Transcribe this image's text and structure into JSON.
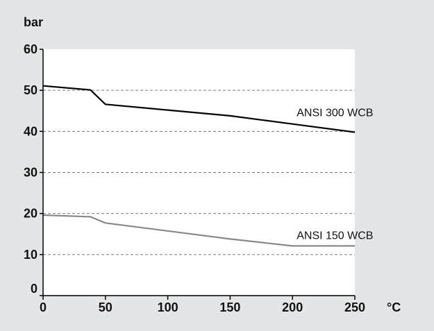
{
  "chart_data": {
    "type": "line",
    "title": "",
    "ylabel": "bar",
    "xlabel": "°C",
    "xlim": [
      0,
      250
    ],
    "ylim": [
      0,
      60
    ],
    "x_ticks": [
      "0",
      "50",
      "100",
      "150",
      "200",
      "250"
    ],
    "y_ticks": [
      "0",
      "10",
      "20",
      "30",
      "40",
      "50",
      "60"
    ],
    "x_tick_values": [
      0,
      50,
      100,
      150,
      200,
      250
    ],
    "y_tick_values": [
      0,
      10,
      20,
      30,
      40,
      50,
      60
    ],
    "grid": "horizontal dashed",
    "background_color": "#e3e5e6",
    "plot_background_color": "#ffffff",
    "series": [
      {
        "name": "ANSI 300 WCB",
        "color": "#000000",
        "x": [
          0,
          38,
          50,
          150,
          200,
          250
        ],
        "y": [
          51.1,
          50.1,
          46.6,
          43.8,
          41.8,
          39.8
        ]
      },
      {
        "name": "ANSI 150 WCB",
        "color": "#888888",
        "x": [
          0,
          38,
          50,
          150,
          200,
          250
        ],
        "y": [
          19.6,
          19.2,
          17.7,
          13.8,
          12.1,
          12.1
        ]
      }
    ]
  }
}
